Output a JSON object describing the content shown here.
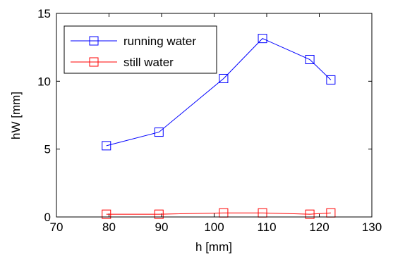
{
  "chart_data": {
    "type": "line",
    "title": "",
    "xlabel": "h [mm]",
    "ylabel": "hW [mm]",
    "xlim": [
      70,
      130
    ],
    "ylim": [
      0,
      15
    ],
    "xticks": [
      70,
      80,
      90,
      100,
      110,
      120,
      130
    ],
    "yticks": [
      0,
      5,
      10,
      15
    ],
    "grid": false,
    "legend_position": "top-left",
    "series": [
      {
        "name": "running water",
        "color": "#0000ff",
        "marker": "square",
        "x": [
          79.5,
          89.5,
          101.8,
          109.2,
          118.2,
          122.2
        ],
        "y": [
          5.25,
          6.25,
          10.2,
          13.15,
          11.6,
          10.1
        ]
      },
      {
        "name": "still water",
        "color": "#ff0000",
        "marker": "square",
        "x": [
          79.5,
          89.5,
          101.8,
          109.2,
          118.2,
          122.2
        ],
        "y": [
          0.2,
          0.2,
          0.3,
          0.3,
          0.2,
          0.3
        ]
      }
    ]
  }
}
